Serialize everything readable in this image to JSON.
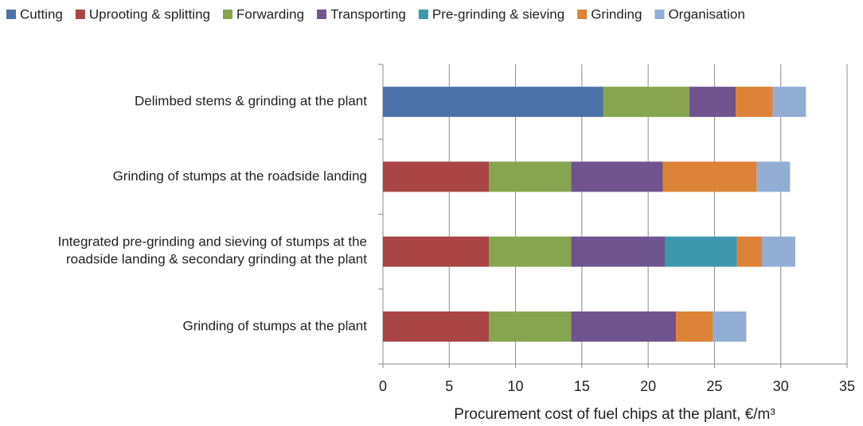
{
  "chart_data": {
    "type": "stacked-barh",
    "xlabel": "Procurement cost of fuel chips at the plant, €/m³",
    "categories": [
      "Delimbed stems & grinding at the plant",
      "Grinding of stumps at the roadside landing",
      "Integrated pre-grinding and sieving of stumps at the\nroadside landing & secondary grinding at the plant",
      "Grinding of stumps at the plant"
    ],
    "series": [
      {
        "name": "Cutting",
        "color": "#4a72a8",
        "values": [
          16.6,
          0,
          0,
          0
        ]
      },
      {
        "name": "Uprooting & splitting",
        "color": "#a94545",
        "values": [
          0,
          8.0,
          8.0,
          8.0
        ]
      },
      {
        "name": "Forwarding",
        "color": "#87a54e",
        "values": [
          6.5,
          6.2,
          6.2,
          6.2
        ]
      },
      {
        "name": "Transporting",
        "color": "#6f5490",
        "values": [
          3.5,
          6.9,
          7.1,
          7.9
        ]
      },
      {
        "name": "Pre-grinding & sieving",
        "color": "#3d98ad",
        "values": [
          0,
          0,
          5.4,
          0
        ]
      },
      {
        "name": "Grinding",
        "color": "#dc8337",
        "values": [
          2.8,
          7.1,
          1.9,
          2.8
        ]
      },
      {
        "name": "Organisation",
        "color": "#93aed5",
        "values": [
          2.5,
          2.5,
          2.5,
          2.5
        ]
      }
    ],
    "xlim": [
      0,
      35
    ],
    "xticks": [
      0,
      5,
      10,
      15,
      20,
      25,
      30,
      35
    ],
    "grid": true,
    "legend": "top"
  }
}
